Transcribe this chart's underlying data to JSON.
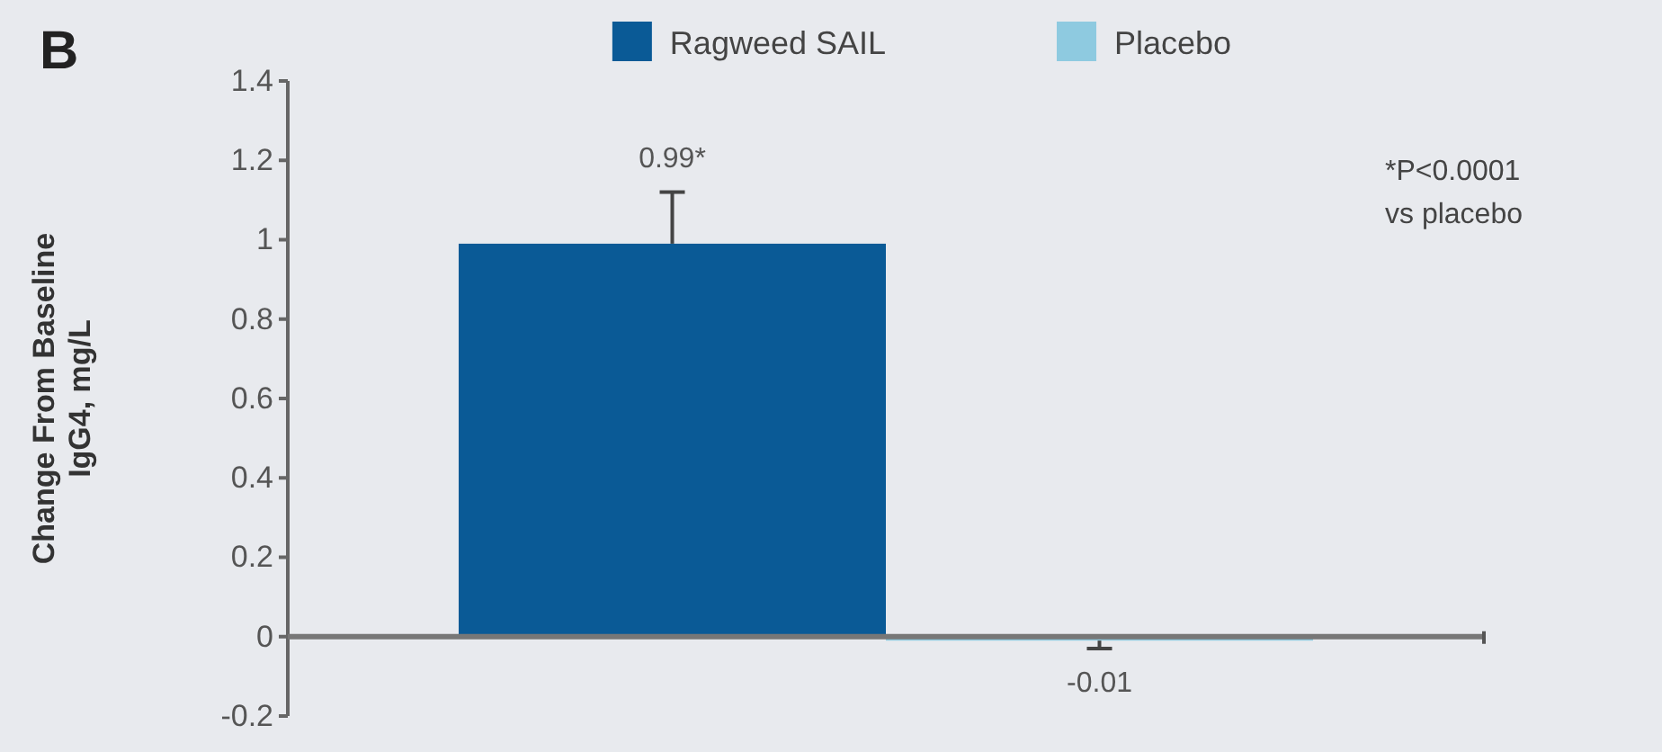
{
  "chart_data": {
    "type": "bar",
    "title": "B",
    "ylabel": "Change From Baseline\nIgG4, mg/L",
    "categories": [
      null
    ],
    "series": [
      {
        "name": "Ragweed SAIL",
        "color": "#0a5a96",
        "values": [
          0.99
        ],
        "errors": [
          [
            0.99,
            1.12
          ]
        ],
        "value_labels": [
          "0.99*"
        ]
      },
      {
        "name": "Placebo",
        "color": "#8ecae0",
        "values": [
          -0.01
        ],
        "errors": [
          [
            -0.03,
            -0.01
          ]
        ],
        "value_labels": [
          "-0.01"
        ]
      }
    ],
    "ylim": [
      -0.2,
      1.4
    ],
    "yticks": [
      -0.2,
      0,
      0.2,
      0.4,
      0.6,
      0.8,
      1,
      1.2,
      1.4
    ],
    "legend": "top",
    "annotations": [
      "*P<0.0001 vs placebo"
    ]
  }
}
